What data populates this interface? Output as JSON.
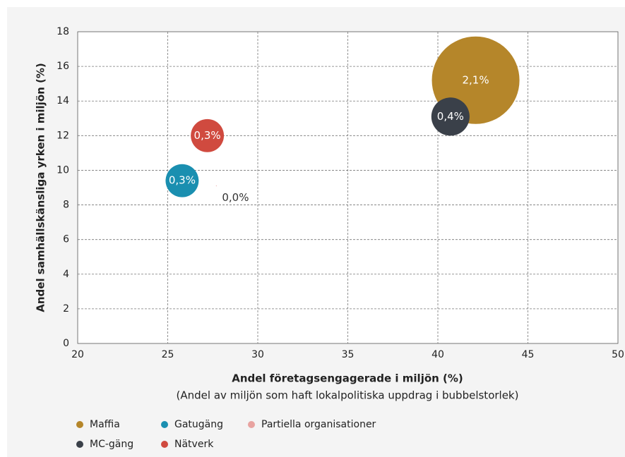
{
  "chart_data": {
    "type": "bubble",
    "xlabel": "Andel företagsengagerade i miljön (%)",
    "subtitle": "(Andel av miljön som haft lokalpolitiska uppdrag i bubbelstorlek)",
    "ylabel": "Andel samhällskänsliga yrken i miljön (%)",
    "xlim": [
      20,
      50
    ],
    "xticks": [
      20,
      25,
      30,
      35,
      40,
      45,
      50
    ],
    "ylim": [
      0,
      18
    ],
    "yticks": [
      0,
      2,
      4,
      6,
      8,
      10,
      12,
      14,
      16,
      18
    ],
    "grid": true,
    "legend": "bottom",
    "series": [
      {
        "name": "Maffia",
        "color": "#b5862a",
        "x": [
          42.1
        ],
        "y": [
          15.2
        ],
        "size": [
          2.1
        ],
        "value_labels": [
          "2,1%"
        ]
      },
      {
        "name": "MC-gäng",
        "color": "#3a4049",
        "x": [
          40.7
        ],
        "y": [
          13.1
        ],
        "size": [
          0.4
        ],
        "value_labels": [
          "0,4%"
        ]
      },
      {
        "name": "Gatugäng",
        "color": "#1a8fb0",
        "x": [
          25.8
        ],
        "y": [
          9.4
        ],
        "size": [
          0.3
        ],
        "value_labels": [
          "0,3%"
        ]
      },
      {
        "name": "Nätverk",
        "color": "#d04a3f",
        "x": [
          27.2
        ],
        "y": [
          12.0
        ],
        "size": [
          0.3
        ],
        "value_labels": [
          "0,3%"
        ]
      },
      {
        "name": "Partiella organisationer",
        "color": "#e8a3a0",
        "x": [
          27.7
        ],
        "y": [
          9.1
        ],
        "size": [
          0.0
        ],
        "value_labels": [
          "0,0%"
        ]
      }
    ]
  }
}
